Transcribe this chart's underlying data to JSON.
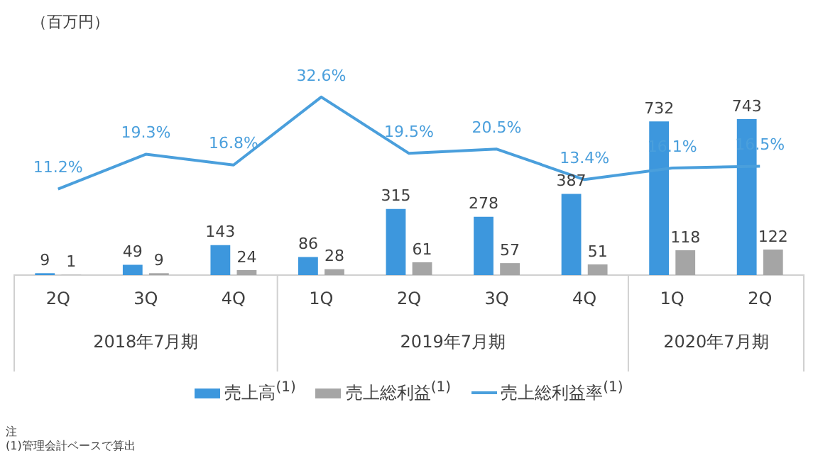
{
  "chart_data": {
    "type": "bar",
    "categories": [
      "2Q",
      "3Q",
      "4Q",
      "1Q",
      "2Q",
      "3Q",
      "4Q",
      "1Q",
      "2Q"
    ],
    "series": [
      {
        "name": "売上高$^{(1)}$",
        "color": "#3d97dd",
        "values": [
          9,
          49,
          143,
          86,
          315,
          278,
          387,
          732,
          743
        ]
      },
      {
        "name": "売上総利益$^{(1)}$",
        "color": "#a5a5a5",
        "values": [
          1,
          9,
          24,
          28,
          61,
          57,
          51,
          118,
          122
        ]
      },
      {
        "name": "売上総利益率$^{(1)}$",
        "type": "line",
        "axis": "y2",
        "color": "#4a9fdc",
        "values": [
          11.2,
          19.3,
          16.8,
          32.6,
          19.5,
          20.5,
          13.4,
          16.1,
          16.5
        ],
        "value_labels": [
          "11.2%",
          "19.3%",
          "16.8%",
          "32.6%",
          "19.5%",
          "20.5%",
          "13.4%",
          "16.1%",
          "16.5%"
        ]
      }
    ],
    "data_labels": true,
    "legend": "bottom",
    "grid": false,
    "annotations": [
      "（百万円）",
      "2018年7月期",
      "2019年7月期",
      "2020年7月期",
      "注",
      "(1)管理会計ベースで算出"
    ]
  }
}
